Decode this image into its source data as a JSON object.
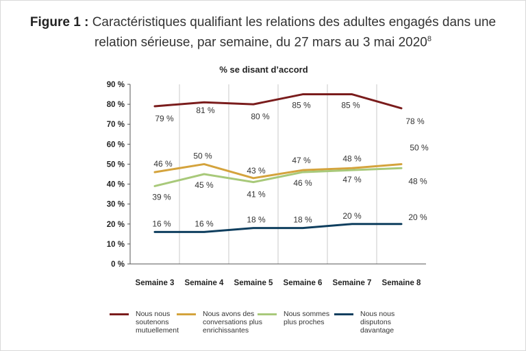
{
  "figure": {
    "label": "Figure 1 :",
    "text_line1": "Caractéristiques qualifiant les relations des adultes engagés dans une",
    "text_line2": "relation sérieuse, par semaine, du 27 mars au 3 mai 2020",
    "footnote_mark": "8"
  },
  "chart_data": {
    "type": "line",
    "title": "% se disant d’accord",
    "xlabel": "",
    "ylabel": "",
    "categories": [
      "Semaine 3",
      "Semaine 4",
      "Semaine 5",
      "Semaine 6",
      "Semaine 7",
      "Semaine 8"
    ],
    "ylim": [
      0,
      90
    ],
    "yticks": [
      0,
      10,
      20,
      30,
      40,
      50,
      60,
      70,
      80,
      90
    ],
    "ytick_labels": [
      "0 %",
      "10 %",
      "20 %",
      "30 %",
      "40 %",
      "50 %",
      "60 %",
      "70 %",
      "80 %",
      "90 %"
    ],
    "grid": "vertical",
    "legend_position": "bottom",
    "series": [
      {
        "name": "Nous nous\nsoutenons\nmutuellement",
        "color": "#7a1c1c",
        "values": [
          79,
          81,
          80,
          85,
          85,
          78
        ],
        "labels": [
          "79 %",
          "81 %",
          "80 %",
          "85 %",
          "85 %",
          "78  %"
        ]
      },
      {
        "name": "Nous avons des\nconversations plus\nenrichissantes",
        "color": "#d4a33c",
        "values": [
          46,
          50,
          43,
          47,
          48,
          50
        ],
        "labels": [
          "46 %",
          "50 %",
          "43 %",
          "47 %",
          "48 %",
          "50 %"
        ]
      },
      {
        "name": "Nous sommes\nplus proches",
        "color": "#a8c97a",
        "values": [
          39,
          45,
          41,
          46,
          47,
          48
        ],
        "labels": [
          "39 %",
          "45 %",
          "41 %",
          "46 %",
          "47 %",
          "48 %"
        ]
      },
      {
        "name": "Nous nous\ndisputons\ndavantage",
        "color": "#0e3e5e",
        "values": [
          16,
          16,
          18,
          18,
          20,
          20
        ],
        "labels": [
          "16 %",
          "16 %",
          "18 %",
          "18 %",
          "20 %",
          "20 %"
        ]
      }
    ]
  }
}
